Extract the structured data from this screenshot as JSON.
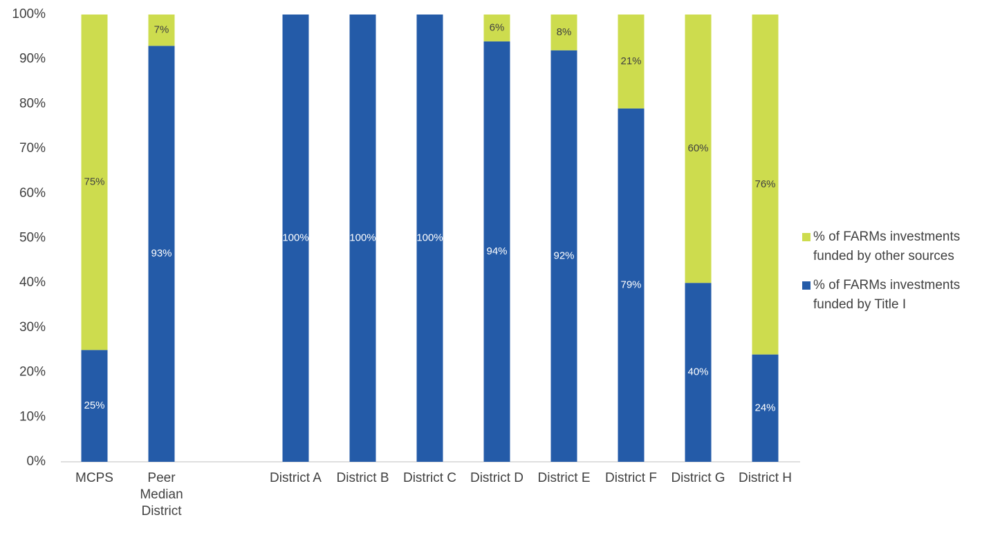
{
  "chart_data": {
    "type": "stacked_bar",
    "categories": [
      "MCPS",
      "Peer Median District",
      null,
      "District A",
      "District B",
      "District C",
      "District D",
      "District E",
      "District F",
      "District G",
      "District H"
    ],
    "series": [
      {
        "name": "% of FARMs investments funded by Title I",
        "color": "#245ba8",
        "values": [
          25,
          93,
          null,
          100,
          100,
          100,
          94,
          92,
          79,
          40,
          24
        ],
        "value_labels": [
          "25%",
          "93%",
          null,
          "100%",
          "100%",
          "100%",
          "94%",
          "92%",
          "79%",
          "40%",
          "24%"
        ]
      },
      {
        "name": "% of FARMs investments funded by other sources",
        "color": "#cddc4e",
        "values": [
          75,
          7,
          null,
          0,
          0,
          0,
          6,
          8,
          21,
          60,
          76
        ],
        "value_labels": [
          "75%",
          "7%",
          null,
          null,
          null,
          null,
          "6%",
          "8%",
          "21%",
          "60%",
          "76%"
        ]
      }
    ],
    "ylim": [
      0,
      100
    ],
    "yticks": [
      {
        "value": 0,
        "label": "0%"
      },
      {
        "value": 10,
        "label": "10%"
      },
      {
        "value": 20,
        "label": "20%"
      },
      {
        "value": 30,
        "label": "30%"
      },
      {
        "value": 40,
        "label": "40%"
      },
      {
        "value": 50,
        "label": "50%"
      },
      {
        "value": 60,
        "label": "60%"
      },
      {
        "value": 70,
        "label": "70%"
      },
      {
        "value": 80,
        "label": "80%"
      },
      {
        "value": 90,
        "label": "90%"
      },
      {
        "value": 100,
        "label": "100%"
      }
    ],
    "legend": "right",
    "grid": false
  }
}
